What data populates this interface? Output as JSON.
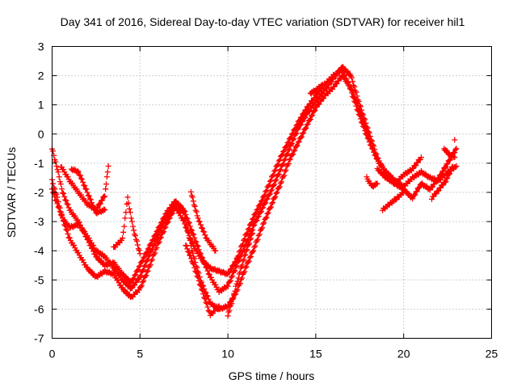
{
  "chart_data": {
    "type": "scatter",
    "title": "Day 341 of 2016, Sidereal Day-to-day VTEC variation (SDTVAR) for receiver hil1",
    "xlabel": "GPS time / hours",
    "ylabel": "SDTVAR / TECUs",
    "xlim": [
      0,
      25
    ],
    "ylim": [
      -7,
      3
    ],
    "xticks": [
      0,
      5,
      10,
      15,
      20,
      25
    ],
    "yticks": [
      -7,
      -6,
      -5,
      -4,
      -3,
      -2,
      -1,
      0,
      1,
      2,
      3
    ],
    "grid": true,
    "marker": "+",
    "color": "#ff0000",
    "series": [
      {
        "x": [
          0.0,
          0.3,
          0.6,
          1.0,
          1.5,
          2.0,
          2.5,
          3.0,
          3.5,
          4.0,
          4.5,
          5.0,
          5.5,
          6.0,
          6.5,
          7.0,
          7.5,
          8.0,
          8.5,
          9.0,
          9.5,
          10.0,
          10.5,
          11.0,
          11.5,
          12.0,
          12.5,
          13.0,
          13.5,
          14.0,
          14.5,
          15.0,
          15.5,
          16.0,
          16.5,
          17.0,
          17.5,
          18.0,
          18.5,
          19.0,
          19.5,
          20.0,
          20.5,
          21.0,
          21.5,
          22.0,
          22.5,
          23.0
        ],
        "y": [
          -1.6,
          -2.2,
          -2.9,
          -3.6,
          -4.1,
          -4.6,
          -4.9,
          -4.7,
          -4.8,
          -5.3,
          -5.6,
          -5.3,
          -4.6,
          -3.8,
          -3.1,
          -2.5,
          -3.0,
          -3.8,
          -4.3,
          -4.6,
          -4.7,
          -4.8,
          -4.3,
          -3.5,
          -2.8,
          -2.2,
          -1.5,
          -0.8,
          -0.2,
          0.4,
          0.9,
          1.3,
          1.7,
          2.0,
          2.2,
          1.5,
          0.6,
          -0.2,
          -0.9,
          -1.3,
          -1.6,
          -1.8,
          -1.5,
          -1.3,
          -1.5,
          -1.6,
          -1.3,
          -1.1
        ]
      },
      {
        "x": [
          0.0,
          0.3,
          0.6,
          1.0,
          1.5,
          2.0,
          2.5,
          3.0,
          3.5,
          4.0,
          4.5,
          5.0,
          5.5,
          6.0,
          6.5,
          7.0,
          7.5,
          8.0,
          8.5,
          9.0,
          9.5,
          10.0,
          10.5,
          11.0,
          11.5,
          12.0,
          12.5,
          13.0,
          13.5,
          14.0,
          14.5,
          15.0,
          15.5,
          16.0,
          16.5,
          17.0,
          17.5,
          18.0,
          18.5,
          19.0,
          19.5,
          20.0,
          20.5,
          21.0,
          21.5,
          22.0,
          22.5,
          23.0
        ],
        "y": [
          -0.5,
          -1.2,
          -2.0,
          -2.6,
          -3.0,
          -3.6,
          -4.2,
          -4.5,
          -4.4,
          -4.8,
          -5.1,
          -4.5,
          -3.9,
          -3.3,
          -2.7,
          -2.3,
          -2.6,
          -3.4,
          -4.2,
          -4.9,
          -5.4,
          -5.2,
          -4.5,
          -3.8,
          -3.1,
          -2.5,
          -1.9,
          -1.2,
          -0.5,
          0.2,
          0.7,
          1.1,
          1.5,
          1.9,
          2.3,
          2.0,
          1.0,
          0.1,
          -0.8,
          -1.4,
          -1.7,
          -1.9,
          -2.2,
          -1.7,
          -1.9,
          -1.5,
          -1.0,
          -0.5
        ]
      },
      {
        "x": [
          0.0,
          0.3,
          0.6,
          1.0,
          1.5,
          2.0,
          2.5,
          3.0,
          3.5,
          4.0,
          4.5,
          5.0,
          5.5,
          6.0,
          6.5,
          7.0,
          7.5,
          8.0,
          8.5,
          9.0,
          9.5,
          10.0,
          10.5,
          11.0,
          11.5,
          12.0,
          12.5,
          13.0,
          13.5,
          14.0,
          14.5,
          15.0,
          15.5,
          16.0,
          16.5,
          17.0,
          17.5,
          18.0
        ],
        "y": [
          -1.9,
          -2.4,
          -2.9,
          -3.2,
          -3.1,
          -3.5,
          -4.0,
          -4.2,
          -4.6,
          -5.0,
          -5.3,
          -4.9,
          -4.2,
          -3.5,
          -2.9,
          -2.4,
          -2.7,
          -4.1,
          -5.1,
          -5.8,
          -6.0,
          -5.9,
          -5.4,
          -4.6,
          -3.9,
          -3.1,
          -2.4,
          -1.7,
          -0.9,
          -0.3,
          0.3,
          0.9,
          1.3,
          1.6,
          2.0,
          1.6,
          0.8,
          -0.1
        ]
      },
      {
        "x": [
          0.5,
          1.0,
          1.5,
          2.0,
          2.5,
          3.0,
          3.2
        ],
        "y": [
          -1.1,
          -1.6,
          -2.0,
          -2.4,
          -2.6,
          -2.1,
          -1.1
        ]
      },
      {
        "x": [
          1.1,
          1.5,
          2.0,
          2.5,
          3.0
        ],
        "y": [
          -1.2,
          -1.3,
          -2.0,
          -2.7,
          -2.6
        ]
      },
      {
        "x": [
          3.5,
          4.0,
          4.3,
          4.6,
          5.0
        ],
        "y": [
          -3.9,
          -3.6,
          -2.2,
          -3.2,
          -4.1
        ]
      },
      {
        "x": [
          7.6,
          8.0,
          8.5,
          9.0,
          9.5
        ],
        "y": [
          -3.8,
          -4.4,
          -5.3,
          -6.2,
          -5.9
        ]
      },
      {
        "x": [
          7.9,
          8.3,
          8.8,
          9.3
        ],
        "y": [
          -2.0,
          -2.9,
          -3.6,
          -4.0
        ]
      },
      {
        "x": [
          10.0,
          10.3,
          10.6,
          11.0,
          11.4
        ],
        "y": [
          -6.2,
          -5.6,
          -4.9,
          -4.1,
          -3.4
        ]
      },
      {
        "x": [
          14.7,
          15.0,
          15.4
        ],
        "y": [
          1.4,
          1.5,
          1.7
        ]
      },
      {
        "x": [
          17.9,
          18.2,
          18.5
        ],
        "y": [
          -1.5,
          -1.8,
          -1.7
        ]
      },
      {
        "x": [
          18.8,
          19.2,
          19.6,
          20.0
        ],
        "y": [
          -2.6,
          -2.4,
          -2.2,
          -2.0
        ]
      },
      {
        "x": [
          18.5,
          19.0,
          19.5,
          20.0,
          20.5,
          21.0
        ],
        "y": [
          -1.2,
          -1.5,
          -1.7,
          -1.4,
          -1.2,
          -0.8
        ]
      },
      {
        "x": [
          21.6,
          22.0,
          22.4,
          22.8,
          22.9
        ],
        "y": [
          -2.2,
          -1.9,
          -1.6,
          -1.1,
          -0.2
        ]
      },
      {
        "x": [
          22.3,
          22.6,
          22.9
        ],
        "y": [
          -0.5,
          -0.7,
          -0.8
        ]
      }
    ]
  }
}
